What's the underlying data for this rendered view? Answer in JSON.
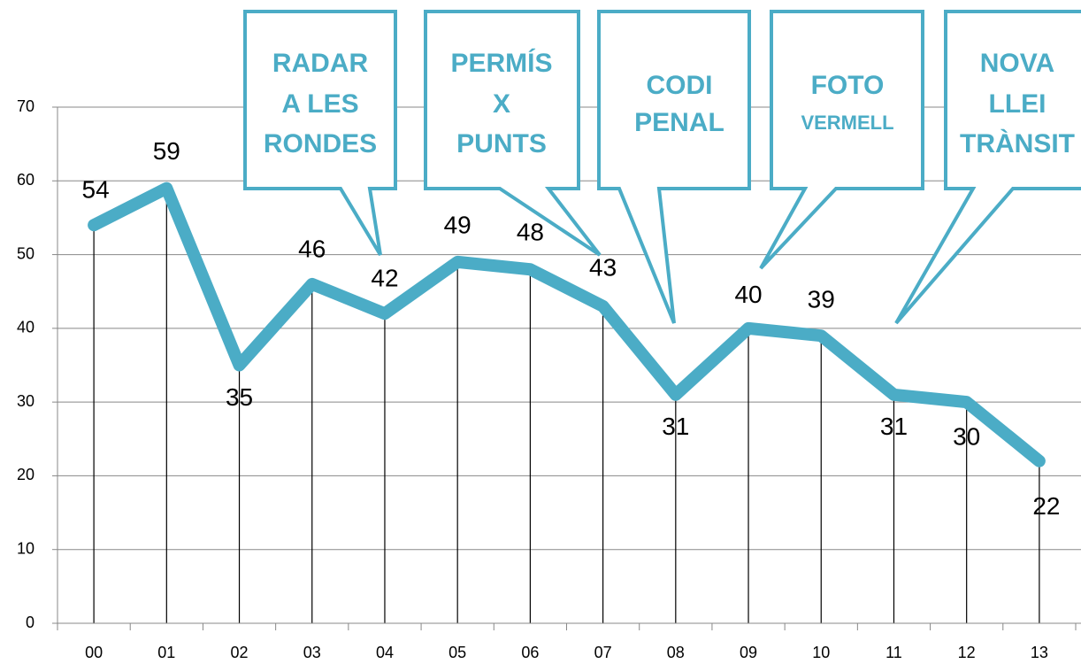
{
  "chart_data": {
    "type": "line",
    "categories": [
      "00",
      "01",
      "02",
      "03",
      "04",
      "05",
      "06",
      "07",
      "08",
      "09",
      "10",
      "11",
      "12",
      "13"
    ],
    "values": [
      54,
      59,
      35,
      46,
      42,
      49,
      48,
      43,
      31,
      40,
      39,
      31,
      30,
      22
    ],
    "color": "#4bacc6",
    "ylim": [
      0,
      70
    ],
    "yticks": [
      0,
      10,
      20,
      30,
      40,
      50,
      60,
      70
    ],
    "grid": true,
    "annotations": [
      {
        "lines": [
          "RADAR",
          "A LES",
          "RONDES"
        ]
      },
      {
        "lines": [
          "PERMÍS",
          "X",
          "PUNTS"
        ]
      },
      {
        "lines": [
          "CODI",
          "PENAL"
        ]
      },
      {
        "lines": [
          "FOTO",
          "VERMELL"
        ]
      },
      {
        "lines": [
          "NOVA",
          "LLEI",
          "TRÀNSIT"
        ]
      }
    ]
  }
}
